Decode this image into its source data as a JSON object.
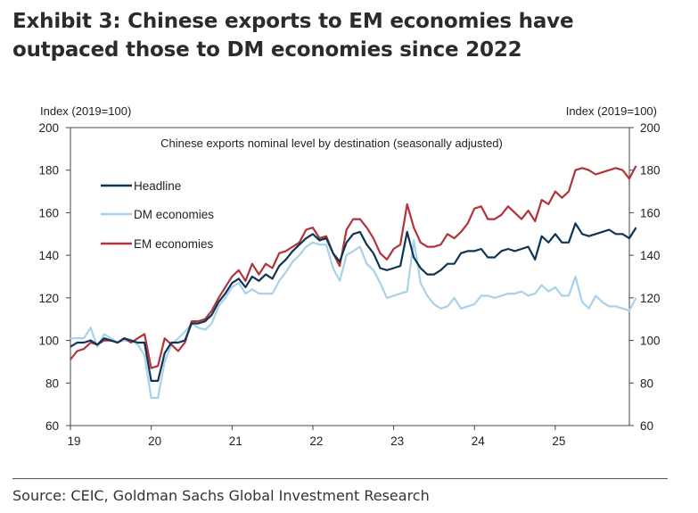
{
  "exhibit": {
    "title": "Exhibit 3: Chinese exports to EM economies have outpaced those to DM economies since 2022",
    "source": "Source: CEIC, Goldman Sachs Global Investment Research"
  },
  "colors": {
    "headline": "#0e3555",
    "dm": "#a9d1ea",
    "em": "#b0343a",
    "axis": "#444444"
  },
  "chart_data": {
    "type": "line",
    "title": "Chinese exports nominal level by destination (seasonally adjusted)",
    "ylabel_left": "Index (2019=100)",
    "ylabel_right": "Index (2019=100)",
    "ylim": [
      60,
      200
    ],
    "yticks": [
      60,
      80,
      100,
      120,
      140,
      160,
      180,
      200
    ],
    "xlim": [
      2019.0,
      2025.917
    ],
    "xticks": [
      {
        "value": 2019,
        "label": "19"
      },
      {
        "value": 2020,
        "label": "20"
      },
      {
        "value": 2021,
        "label": "21"
      },
      {
        "value": 2022,
        "label": "22"
      },
      {
        "value": 2023,
        "label": "23"
      },
      {
        "value": 2024,
        "label": "24"
      },
      {
        "value": 2025,
        "label": "25"
      }
    ],
    "x_start": 2019.0,
    "x_step": 0.08333,
    "legend_position": "upper-left",
    "series": [
      {
        "name": "Headline",
        "color_key": "headline",
        "values": [
          97,
          99,
          99,
          100,
          98,
          101,
          100,
          99,
          101,
          100,
          99,
          99,
          81,
          81,
          94,
          99,
          99,
          100,
          108,
          108,
          109,
          112,
          118,
          122,
          127,
          129,
          125,
          130,
          128,
          131,
          129,
          135,
          138,
          142,
          145,
          148,
          150,
          147,
          148,
          141,
          137,
          146,
          150,
          151,
          145,
          141,
          134,
          133,
          134,
          135,
          151,
          139,
          134,
          131,
          131,
          133,
          136,
          136,
          141,
          142,
          142,
          143,
          139,
          139,
          142,
          143,
          142,
          143,
          144,
          138,
          149,
          146,
          150,
          146,
          146,
          155,
          150,
          149,
          150,
          151,
          152,
          150,
          150,
          148,
          153
        ]
      },
      {
        "name": "DM economies",
        "color_key": "dm",
        "values": [
          101,
          101,
          101,
          106,
          97,
          103,
          101,
          99,
          100,
          100,
          98,
          93,
          73,
          73,
          90,
          98,
          101,
          104,
          108,
          106,
          105,
          108,
          116,
          120,
          125,
          127,
          122,
          124,
          122,
          122,
          122,
          128,
          132,
          137,
          140,
          144,
          146,
          145,
          145,
          134,
          128,
          140,
          142,
          144,
          136,
          133,
          127,
          120,
          121,
          122,
          123,
          147,
          127,
          121,
          117,
          115,
          116,
          120,
          115,
          116,
          117,
          121,
          121,
          120,
          121,
          122,
          122,
          123,
          121,
          122,
          126,
          123,
          125,
          121,
          121,
          130,
          118,
          115,
          121,
          118,
          116,
          116,
          115,
          114,
          120
        ]
      },
      {
        "name": "EM economies",
        "color_key": "em",
        "values": [
          91,
          95,
          96,
          99,
          98,
          100,
          100,
          99,
          101,
          99,
          101,
          103,
          87,
          88,
          101,
          98,
          95,
          99,
          109,
          109,
          110,
          114,
          120,
          125,
          130,
          133,
          128,
          136,
          131,
          136,
          134,
          141,
          142,
          144,
          146,
          152,
          153,
          148,
          149,
          141,
          135,
          152,
          157,
          157,
          153,
          148,
          141,
          138,
          143,
          145,
          164,
          153,
          146,
          144,
          144,
          145,
          150,
          148,
          151,
          155,
          162,
          163,
          157,
          157,
          159,
          163,
          160,
          157,
          161,
          156,
          166,
          164,
          170,
          167,
          170,
          180,
          181,
          180,
          178,
          179,
          180,
          181,
          180,
          176,
          182
        ]
      }
    ]
  }
}
